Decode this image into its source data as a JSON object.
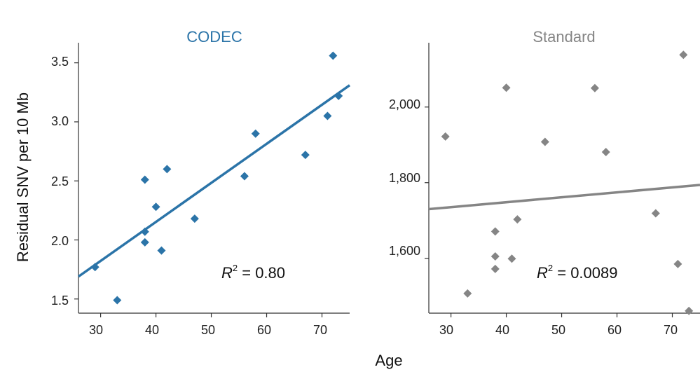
{
  "chart_data": [
    {
      "type": "scatter",
      "title": "CODEC",
      "xlabel": "Age",
      "ylabel": "Residual SNV per 10 Mb",
      "xlim": [
        26,
        75
      ],
      "ylim": [
        1.38,
        3.67
      ],
      "xticks": [
        30,
        40,
        50,
        60,
        70
      ],
      "yticks": [
        1.5,
        2.0,
        2.5,
        3.0,
        3.5
      ],
      "xtick_labels": [
        "30",
        "40",
        "50",
        "60",
        "70"
      ],
      "ytick_labels": [
        "1.5",
        "2.0",
        "2.5",
        "3.0",
        "3.5"
      ],
      "color": "#2b74a8",
      "points": [
        {
          "x": 29,
          "y": 1.77
        },
        {
          "x": 33,
          "y": 1.49
        },
        {
          "x": 38,
          "y": 2.51
        },
        {
          "x": 38,
          "y": 2.07
        },
        {
          "x": 38,
          "y": 1.98
        },
        {
          "x": 40,
          "y": 2.28
        },
        {
          "x": 41,
          "y": 1.91
        },
        {
          "x": 42,
          "y": 2.6
        },
        {
          "x": 47,
          "y": 2.18
        },
        {
          "x": 56,
          "y": 2.54
        },
        {
          "x": 58,
          "y": 2.9
        },
        {
          "x": 67,
          "y": 2.72
        },
        {
          "x": 71,
          "y": 3.05
        },
        {
          "x": 72,
          "y": 3.56
        },
        {
          "x": 73,
          "y": 3.22
        }
      ],
      "fit_line": {
        "x": [
          26,
          75
        ],
        "y": [
          1.69,
          3.31
        ]
      },
      "annotation": {
        "r_symbol": "R",
        "sup": "2",
        "text": " = 0.80"
      }
    },
    {
      "type": "scatter",
      "title": "Standard",
      "xlabel": "Age",
      "ylabel": "",
      "xlim": [
        26,
        75
      ],
      "ylim": [
        1455,
        2170
      ],
      "xticks": [
        30,
        40,
        50,
        60,
        70
      ],
      "yticks": [
        1600,
        1800,
        2000
      ],
      "xtick_labels": [
        "30",
        "40",
        "50",
        "60",
        "70"
      ],
      "ytick_labels": [
        "1,600",
        "1,800",
        "2,000"
      ],
      "color": "#858585",
      "points": [
        {
          "x": 29,
          "y": 1922
        },
        {
          "x": 33,
          "y": 1507
        },
        {
          "x": 38,
          "y": 1671
        },
        {
          "x": 38,
          "y": 1605
        },
        {
          "x": 38,
          "y": 1572
        },
        {
          "x": 40,
          "y": 2051
        },
        {
          "x": 41,
          "y": 1599
        },
        {
          "x": 42,
          "y": 1703
        },
        {
          "x": 47,
          "y": 1908
        },
        {
          "x": 56,
          "y": 2050
        },
        {
          "x": 58,
          "y": 1881
        },
        {
          "x": 67,
          "y": 1719
        },
        {
          "x": 71,
          "y": 1585
        },
        {
          "x": 72,
          "y": 2138
        },
        {
          "x": 73,
          "y": 1461
        }
      ],
      "fit_line": {
        "x": [
          26,
          75
        ],
        "y": [
          1730,
          1794
        ]
      },
      "annotation": {
        "r_symbol": "R",
        "sup": "2",
        "text": " = 0.0089"
      }
    }
  ],
  "shared_xlabel": "Age"
}
